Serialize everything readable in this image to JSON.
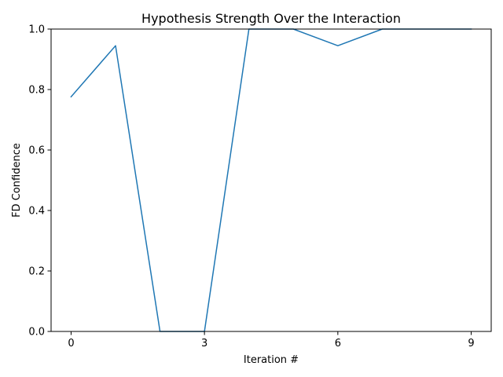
{
  "chart_data": {
    "type": "line",
    "title": "Hypothesis Strength Over the Interaction",
    "xlabel": "Iteration #",
    "ylabel": "FD Confidence",
    "x": [
      0,
      1,
      2,
      3,
      4,
      5,
      6,
      7,
      8,
      9
    ],
    "series": [
      {
        "values": [
          0.776,
          0.945,
          0.0,
          0.0,
          1.0,
          1.0,
          0.945,
          1.0,
          1.0,
          1.0
        ]
      }
    ],
    "xticks": [
      0,
      3,
      6,
      9
    ],
    "xtick_labels": [
      "0",
      "3",
      "6",
      "9"
    ],
    "yticks": [
      0.0,
      0.2,
      0.4,
      0.6,
      0.8,
      1.0
    ],
    "ytick_labels": [
      "0.0",
      "0.2",
      "0.4",
      "0.6",
      "0.8",
      "1.0"
    ],
    "xlim": [
      -0.45,
      9.45
    ],
    "ylim": [
      0,
      1
    ],
    "grid": false,
    "colors": {
      "line": "#1f77b4",
      "axes": "#000000"
    }
  }
}
